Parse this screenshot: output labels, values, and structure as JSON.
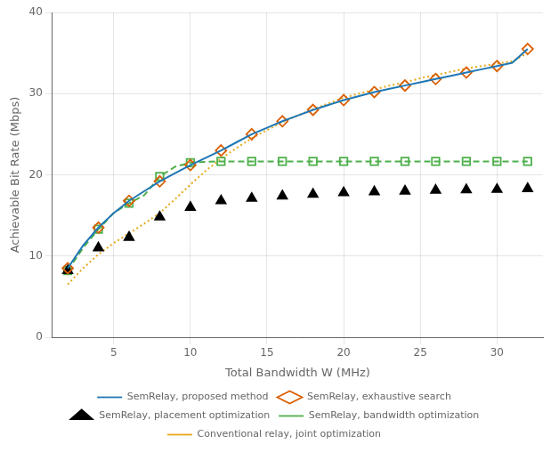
{
  "chart_data": {
    "type": "line",
    "xlabel": "Total Bandwidth W (MHz)",
    "ylabel": "Achievable Bit Rate (Mbps)",
    "xlim": [
      1,
      33
    ],
    "ylim": [
      0,
      40
    ],
    "xticks": [
      5,
      10,
      15,
      20,
      25,
      30
    ],
    "yticks": [
      0,
      10,
      20,
      30,
      40
    ],
    "grid": true,
    "legend": "bottom",
    "series": [
      {
        "name": "SemRelay, proposed method",
        "color": "#1f77b4",
        "line_style": "solid",
        "marker": "none",
        "x": [
          2,
          3,
          4,
          5,
          6,
          7,
          8,
          9,
          10,
          11,
          12,
          13,
          14,
          15,
          16,
          17,
          18,
          19,
          20,
          21,
          22,
          23,
          24,
          25,
          26,
          27,
          28,
          29,
          30,
          31,
          32
        ],
        "values": [
          8.5,
          11.3,
          13.5,
          15.3,
          16.8,
          18.0,
          19.2,
          20.2,
          21.2,
          22.1,
          23.0,
          24.0,
          25.0,
          25.8,
          26.6,
          27.3,
          28.0,
          28.6,
          29.2,
          29.7,
          30.2,
          30.6,
          31.0,
          31.4,
          31.8,
          32.2,
          32.6,
          33.0,
          33.4,
          33.8,
          35.5
        ]
      },
      {
        "name": "SemRelay, exhaustive search",
        "color": "#d95f02",
        "line_style": "none",
        "marker": "diamond",
        "x": [
          2,
          4,
          6,
          8,
          10,
          12,
          14,
          16,
          18,
          20,
          22,
          24,
          26,
          28,
          30,
          32
        ],
        "values": [
          8.5,
          13.5,
          16.8,
          19.2,
          21.2,
          23.0,
          25.0,
          26.6,
          28.0,
          29.2,
          30.2,
          31.0,
          31.8,
          32.6,
          33.4,
          35.5
        ]
      },
      {
        "name": "SemRelay, placement optimization",
        "color": "#000000",
        "line_style": "none",
        "marker": "triangle",
        "x": [
          2,
          4,
          6,
          8,
          10,
          12,
          14,
          16,
          18,
          20,
          22,
          24,
          26,
          28,
          30,
          32
        ],
        "values": [
          8.2,
          11.0,
          12.3,
          14.8,
          16.0,
          16.8,
          17.1,
          17.4,
          17.6,
          17.8,
          17.9,
          18.0,
          18.1,
          18.15,
          18.2,
          18.3
        ]
      },
      {
        "name": "SemRelay, bandwidth optimization",
        "color": "#4daf4a",
        "line_style": "dashed",
        "marker": "none",
        "x": [
          2,
          3,
          4,
          5,
          6,
          7,
          8,
          9,
          10,
          11,
          12,
          13,
          14,
          15,
          16,
          17,
          18,
          19,
          20,
          21,
          22,
          23,
          24,
          25,
          26,
          27,
          28,
          29,
          30,
          31,
          32
        ],
        "values": [
          8.2,
          11.0,
          13.3,
          15.3,
          16.5,
          17.5,
          19.8,
          21.0,
          21.5,
          21.6,
          21.65,
          21.65,
          21.65,
          21.65,
          21.65,
          21.65,
          21.65,
          21.65,
          21.65,
          21.65,
          21.65,
          21.65,
          21.65,
          21.65,
          21.65,
          21.65,
          21.65,
          21.65,
          21.65,
          21.65,
          21.65
        ]
      },
      {
        "color": "#4daf4a",
        "line_style": "none",
        "marker": "square",
        "x": [
          2,
          4,
          6,
          8,
          10,
          12,
          14,
          16,
          18,
          20,
          22,
          24,
          26,
          28,
          30,
          32
        ],
        "values": [
          8.2,
          13.3,
          16.5,
          19.8,
          21.5,
          21.65,
          21.65,
          21.65,
          21.65,
          21.65,
          21.65,
          21.65,
          21.65,
          21.65,
          21.65,
          21.65
        ]
      },
      {
        "name": "Conventional relay, joint optimization",
        "color": "#e6a817",
        "line_style": "dotted",
        "marker": "none",
        "x": [
          2,
          3,
          4,
          5,
          6,
          7,
          8,
          9,
          10,
          11,
          12,
          13,
          14,
          15,
          16,
          17,
          18,
          19,
          20,
          21,
          22,
          23,
          24,
          25,
          26,
          27,
          28,
          29,
          30,
          31,
          32
        ],
        "values": [
          6.5,
          8.5,
          10.2,
          11.6,
          12.8,
          14.0,
          15.3,
          17.0,
          18.8,
          20.5,
          22.0,
          23.3,
          24.5,
          25.5,
          26.5,
          27.3,
          28.1,
          28.8,
          29.5,
          30.0,
          30.5,
          31.0,
          31.4,
          31.9,
          32.3,
          32.7,
          33.1,
          33.4,
          33.7,
          34.0,
          35.0
        ]
      }
    ]
  }
}
